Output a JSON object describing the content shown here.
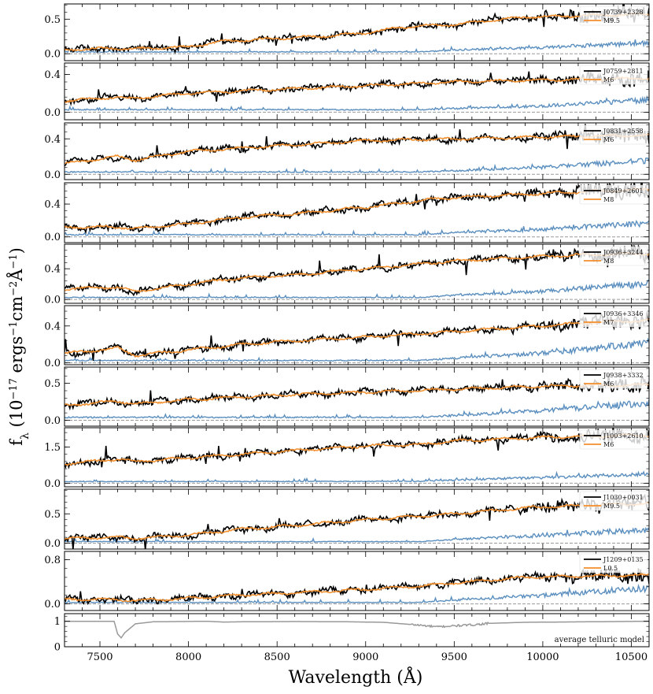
{
  "chart_data": {
    "type": "line",
    "xlabel": "Wavelength (Å)",
    "ylabel": "f_λ (10^-17 ergs^-1 cm^-2 Å^-1)",
    "ylabel_parts": {
      "f": "f",
      "lambda": "λ",
      "open": " (10",
      "exp1": "−17",
      "ergs": " ergs",
      "exp2": "−1",
      "cm": "cm",
      "exp3": "−2",
      "ang": "Å",
      "exp4": "−1",
      "close": ")"
    },
    "xlim": [
      7300,
      10600
    ],
    "xticks": [
      7500,
      8000,
      8500,
      9000,
      9500,
      10000,
      10500
    ],
    "xtick_labels": [
      "7500",
      "8000",
      "8500",
      "9000",
      "9500",
      "10000",
      "10500"
    ],
    "colors": {
      "observed": "#000000",
      "template": "#f28e2b",
      "noise": "#5b8fbf",
      "zero": "#999999",
      "telluric": "#999999"
    },
    "panels": [
      {
        "object": "J0739+2328",
        "template": "M9.5",
        "ylim": [
          -0.1,
          0.72
        ],
        "yticks": [
          0.0,
          0.5
        ],
        "ytick_labels": [
          "0.0",
          "0.5"
        ],
        "continuum": [
          [
            7300,
            0.06
          ],
          [
            7600,
            0.08
          ],
          [
            7700,
            0.07
          ],
          [
            8000,
            0.1
          ],
          [
            8200,
            0.18
          ],
          [
            8500,
            0.22
          ],
          [
            8800,
            0.26
          ],
          [
            9000,
            0.3
          ],
          [
            9200,
            0.38
          ],
          [
            9300,
            0.4
          ],
          [
            9500,
            0.42
          ],
          [
            9700,
            0.48
          ],
          [
            9900,
            0.53
          ],
          [
            10200,
            0.55
          ],
          [
            10600,
            0.57
          ]
        ],
        "noise": [
          [
            7300,
            0.02
          ],
          [
            9300,
            0.02
          ],
          [
            9500,
            0.04
          ],
          [
            10000,
            0.07
          ],
          [
            10600,
            0.12
          ]
        ]
      },
      {
        "object": "J0759+2811",
        "template": "M6",
        "ylim": [
          -0.08,
          0.52
        ],
        "yticks": [
          0.0,
          0.4
        ],
        "ytick_labels": [
          "0.0",
          "0.4"
        ],
        "continuum": [
          [
            7300,
            0.12
          ],
          [
            7600,
            0.16
          ],
          [
            7650,
            0.14
          ],
          [
            8000,
            0.2
          ],
          [
            8500,
            0.24
          ],
          [
            9000,
            0.28
          ],
          [
            9500,
            0.32
          ],
          [
            10000,
            0.34
          ],
          [
            10600,
            0.36
          ]
        ],
        "noise": [
          [
            7300,
            0.02
          ],
          [
            9300,
            0.02
          ],
          [
            9500,
            0.03
          ],
          [
            10000,
            0.05
          ],
          [
            10600,
            0.1
          ]
        ]
      },
      {
        "object": "J0831+2558",
        "template": "M6",
        "ylim": [
          -0.06,
          0.58
        ],
        "yticks": [
          0.0,
          0.4
        ],
        "ytick_labels": [
          "0.0",
          "0.4"
        ],
        "continuum": [
          [
            7300,
            0.12
          ],
          [
            7600,
            0.2
          ],
          [
            7700,
            0.16
          ],
          [
            8000,
            0.26
          ],
          [
            8500,
            0.32
          ],
          [
            9000,
            0.38
          ],
          [
            9500,
            0.4
          ],
          [
            10000,
            0.42
          ],
          [
            10600,
            0.44
          ]
        ],
        "noise": [
          [
            7300,
            0.02
          ],
          [
            9300,
            0.02
          ],
          [
            9500,
            0.03
          ],
          [
            10000,
            0.06
          ],
          [
            10600,
            0.12
          ]
        ]
      },
      {
        "object": "J0849+2601",
        "template": "M8",
        "ylim": [
          -0.07,
          0.66
        ],
        "yticks": [
          0.0,
          0.4
        ],
        "ytick_labels": [
          "0.0",
          "0.4"
        ],
        "continuum": [
          [
            7300,
            0.12
          ],
          [
            7600,
            0.12
          ],
          [
            7700,
            0.1
          ],
          [
            8000,
            0.16
          ],
          [
            8300,
            0.24
          ],
          [
            8600,
            0.28
          ],
          [
            9000,
            0.36
          ],
          [
            9300,
            0.44
          ],
          [
            9500,
            0.48
          ],
          [
            9900,
            0.52
          ],
          [
            10200,
            0.55
          ],
          [
            10600,
            0.58
          ]
        ],
        "noise": [
          [
            7300,
            0.02
          ],
          [
            9300,
            0.02
          ],
          [
            9500,
            0.04
          ],
          [
            10000,
            0.07
          ],
          [
            10600,
            0.13
          ]
        ]
      },
      {
        "object": "J0936+3244",
        "template": "M8",
        "ylim": [
          -0.05,
          0.72
        ],
        "yticks": [
          0.0,
          0.4
        ],
        "ytick_labels": [
          "0.0",
          "0.4"
        ],
        "continuum": [
          [
            7300,
            0.14
          ],
          [
            7600,
            0.16
          ],
          [
            7700,
            0.1
          ],
          [
            8000,
            0.2
          ],
          [
            8300,
            0.28
          ],
          [
            8600,
            0.32
          ],
          [
            9000,
            0.4
          ],
          [
            9300,
            0.46
          ],
          [
            9500,
            0.5
          ],
          [
            9900,
            0.55
          ],
          [
            10200,
            0.58
          ],
          [
            10600,
            0.6
          ]
        ],
        "noise": [
          [
            7300,
            0.02
          ],
          [
            9300,
            0.02
          ],
          [
            9500,
            0.04
          ],
          [
            10000,
            0.08
          ],
          [
            10600,
            0.16
          ]
        ]
      },
      {
        "object": "J0936+3346",
        "template": "M7",
        "ylim": [
          -0.02,
          0.62
        ],
        "yticks": [
          0.0,
          0.4
        ],
        "ytick_labels": [
          "0.0",
          "0.4"
        ],
        "continuum": [
          [
            7300,
            0.1
          ],
          [
            7600,
            0.16
          ],
          [
            7700,
            0.08
          ],
          [
            8000,
            0.14
          ],
          [
            8300,
            0.2
          ],
          [
            8600,
            0.24
          ],
          [
            9000,
            0.28
          ],
          [
            9500,
            0.34
          ],
          [
            10000,
            0.4
          ],
          [
            10300,
            0.44
          ],
          [
            10600,
            0.46
          ]
        ],
        "noise": [
          [
            7300,
            0.02
          ],
          [
            9300,
            0.02
          ],
          [
            9500,
            0.04
          ],
          [
            10000,
            0.08
          ],
          [
            10600,
            0.16
          ]
        ]
      },
      {
        "object": "J0938+3332",
        "template": "M6",
        "ylim": [
          -0.08,
          0.72
        ],
        "yticks": [
          0.0,
          0.5
        ],
        "ytick_labels": [
          "0.0",
          "0.5"
        ],
        "continuum": [
          [
            7300,
            0.2
          ],
          [
            7600,
            0.26
          ],
          [
            7700,
            0.22
          ],
          [
            8000,
            0.28
          ],
          [
            8500,
            0.34
          ],
          [
            9000,
            0.38
          ],
          [
            9500,
            0.42
          ],
          [
            10000,
            0.46
          ],
          [
            10600,
            0.48
          ]
        ],
        "noise": [
          [
            7300,
            0.03
          ],
          [
            9300,
            0.03
          ],
          [
            9500,
            0.05
          ],
          [
            10000,
            0.1
          ],
          [
            10600,
            0.18
          ]
        ]
      },
      {
        "object": "J1003+2610",
        "template": "M6",
        "ylim": [
          -0.15,
          2.3
        ],
        "yticks": [
          0.0,
          1.5
        ],
        "ytick_labels": [
          "0.0",
          "1.5"
        ],
        "continuum": [
          [
            7300,
            0.8
          ],
          [
            7600,
            1.0
          ],
          [
            7700,
            0.9
          ],
          [
            8000,
            1.05
          ],
          [
            8500,
            1.3
          ],
          [
            9000,
            1.55
          ],
          [
            9300,
            1.6
          ],
          [
            9500,
            1.75
          ],
          [
            10000,
            1.9
          ],
          [
            10600,
            2.0
          ]
        ],
        "noise": [
          [
            7300,
            0.05
          ],
          [
            9300,
            0.06
          ],
          [
            9500,
            0.1
          ],
          [
            10000,
            0.18
          ],
          [
            10600,
            0.3
          ]
        ]
      },
      {
        "object": "J1030+0031",
        "template": "M9.5",
        "ylim": [
          -0.1,
          0.92
        ],
        "yticks": [
          0.0,
          0.5
        ],
        "ytick_labels": [
          "0.0",
          "0.5"
        ],
        "continuum": [
          [
            7300,
            0.08
          ],
          [
            7600,
            0.1
          ],
          [
            7700,
            0.08
          ],
          [
            8000,
            0.14
          ],
          [
            8300,
            0.24
          ],
          [
            8600,
            0.3
          ],
          [
            9000,
            0.4
          ],
          [
            9300,
            0.46
          ],
          [
            9500,
            0.5
          ],
          [
            9900,
            0.6
          ],
          [
            10200,
            0.64
          ],
          [
            10600,
            0.68
          ]
        ],
        "noise": [
          [
            7300,
            0.02
          ],
          [
            9300,
            0.02
          ],
          [
            9500,
            0.05
          ],
          [
            10000,
            0.1
          ],
          [
            10600,
            0.18
          ]
        ]
      },
      {
        "object": "J1209+0135",
        "template": "L0.5",
        "ylim": [
          -0.12,
          0.95
        ],
        "yticks": [
          0.0,
          0.8
        ],
        "ytick_labels": [
          "0.0",
          "0.8"
        ],
        "continuum": [
          [
            7300,
            0.08
          ],
          [
            7600,
            0.08
          ],
          [
            7700,
            0.06
          ],
          [
            8000,
            0.1
          ],
          [
            8300,
            0.16
          ],
          [
            8600,
            0.2
          ],
          [
            9000,
            0.26
          ],
          [
            9300,
            0.32
          ],
          [
            9500,
            0.38
          ],
          [
            9900,
            0.48
          ],
          [
            10200,
            0.5
          ],
          [
            10600,
            0.52
          ]
        ],
        "noise": [
          [
            7300,
            0.02
          ],
          [
            9300,
            0.02
          ],
          [
            9500,
            0.05
          ],
          [
            10000,
            0.12
          ],
          [
            10600,
            0.22
          ]
        ]
      }
    ],
    "telluric": {
      "label": "average telluric model",
      "ylim": [
        0.0,
        1.3
      ],
      "yticks": [
        0,
        1
      ],
      "ytick_labels": [
        "0",
        "1"
      ],
      "curve": [
        [
          7300,
          1.0
        ],
        [
          7580,
          1.0
        ],
        [
          7600,
          0.5
        ],
        [
          7620,
          0.35
        ],
        [
          7640,
          0.55
        ],
        [
          7700,
          0.9
        ],
        [
          7800,
          0.98
        ],
        [
          8100,
          1.0
        ],
        [
          8200,
          0.97
        ],
        [
          8300,
          0.98
        ],
        [
          8600,
          0.99
        ],
        [
          8900,
          0.98
        ],
        [
          9100,
          0.96
        ],
        [
          9300,
          0.85
        ],
        [
          9400,
          0.78
        ],
        [
          9500,
          0.82
        ],
        [
          9600,
          0.86
        ],
        [
          9700,
          0.92
        ],
        [
          9900,
          0.96
        ],
        [
          10600,
          1.0
        ]
      ]
    }
  }
}
